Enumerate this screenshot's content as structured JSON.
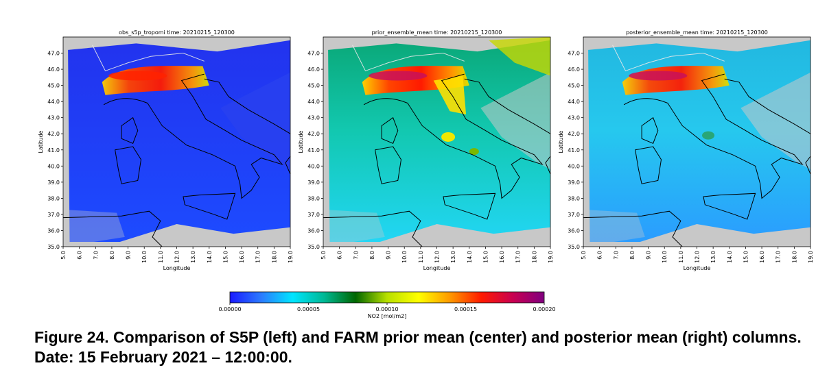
{
  "chart_data": [
    {
      "type": "heatmap",
      "title": "obs_s5p_tropomi time: 20210215_120300",
      "xlabel": "Longitude",
      "ylabel": "Latitude",
      "xlim": [
        5.0,
        19.0
      ],
      "ylim": [
        35.0,
        48.0
      ],
      "xticks": [
        "5.0",
        "6.0",
        "7.0",
        "8.0",
        "9.0",
        "10.0",
        "11.0",
        "12.0",
        "13.0",
        "14.0",
        "15.0",
        "16.0",
        "17.0",
        "18.0",
        "19.0"
      ],
      "yticks": [
        "35.0",
        "36.0",
        "37.0",
        "38.0",
        "39.0",
        "40.0",
        "41.0",
        "42.0",
        "43.0",
        "44.0",
        "45.0",
        "46.0",
        "47.0"
      ],
      "background": "#c8c8c8"
    },
    {
      "type": "heatmap",
      "title": "prior_ensemble_mean time: 20210215_120300",
      "xlabel": "Longitude",
      "ylabel": "Latitude",
      "xlim": [
        5.0,
        19.0
      ],
      "ylim": [
        35.0,
        48.0
      ],
      "xticks": [
        "5.0",
        "6.0",
        "7.0",
        "8.0",
        "9.0",
        "10.0",
        "11.0",
        "12.0",
        "13.0",
        "14.0",
        "15.0",
        "16.0",
        "17.0",
        "18.0",
        "19.0"
      ],
      "yticks": [
        "35.0",
        "36.0",
        "37.0",
        "38.0",
        "39.0",
        "40.0",
        "41.0",
        "42.0",
        "43.0",
        "44.0",
        "45.0",
        "46.0",
        "47.0"
      ],
      "background": "#c8c8c8"
    },
    {
      "type": "heatmap",
      "title": "posterior_ensemble_mean time: 20210215_120300",
      "xlabel": "Longitude",
      "ylabel": "Latitude",
      "xlim": [
        5.0,
        19.0
      ],
      "ylim": [
        35.0,
        48.0
      ],
      "xticks": [
        "5.0",
        "6.0",
        "7.0",
        "8.0",
        "9.0",
        "10.0",
        "11.0",
        "12.0",
        "13.0",
        "14.0",
        "15.0",
        "16.0",
        "17.0",
        "18.0",
        "19.0"
      ],
      "yticks": [
        "35.0",
        "36.0",
        "37.0",
        "38.0",
        "39.0",
        "40.0",
        "41.0",
        "42.0",
        "43.0",
        "44.0",
        "45.0",
        "46.0",
        "47.0"
      ],
      "background": "#c8c8c8"
    }
  ],
  "colorbar": {
    "label": "NO2 [mol/m2]",
    "ticks": [
      "0.00000",
      "0.00005",
      "0.00010",
      "0.00015",
      "0.00020"
    ],
    "range": [
      0.0,
      0.0002
    ],
    "colors": [
      "#1a1aff",
      "#2b7bff",
      "#00e5ff",
      "#00b894",
      "#006600",
      "#b8e000",
      "#ffff00",
      "#ff9900",
      "#ff1a00",
      "#c80050",
      "#800080"
    ]
  },
  "caption": "Figure 24. Comparison of S5P (left) and FARM prior mean (center) and posterior mean (right) columns. Date: 15 February 2021 – 12:00:00."
}
